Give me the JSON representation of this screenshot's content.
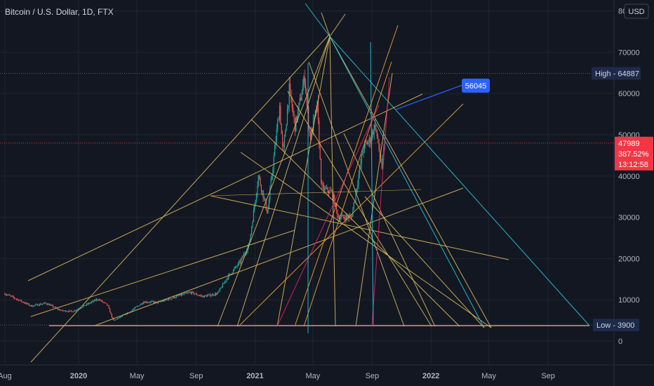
{
  "header": {
    "symbol": "Bitcoin / U.S. Dollar, 1D, FTX",
    "currency": "USD"
  },
  "chart_data": {
    "type": "candlestick",
    "title": "Bitcoin / U.S. Dollar, 1D, FTX",
    "ylim": [
      -4000,
      80000
    ],
    "y_ticks": [
      0,
      10000,
      20000,
      30000,
      40000,
      50000,
      60000,
      70000,
      80000
    ],
    "x_ticks": [
      "Aug",
      "2020",
      "May",
      "Sep",
      "2021",
      "May",
      "Sep",
      "2022",
      "May",
      "Sep"
    ],
    "price_path": [
      [
        "2019-08-01",
        11500
      ],
      [
        "2019-08-25",
        10200
      ],
      [
        "2019-09-25",
        8500
      ],
      [
        "2019-10-25",
        9200
      ],
      [
        "2019-11-25",
        7400
      ],
      [
        "2019-12-20",
        7200
      ],
      [
        "2020-02-10",
        10200
      ],
      [
        "2020-03-01",
        8700
      ],
      [
        "2020-03-13",
        4900
      ],
      [
        "2020-04-15",
        7000
      ],
      [
        "2020-05-15",
        9500
      ],
      [
        "2020-06-15",
        9400
      ],
      [
        "2020-07-27",
        11000
      ],
      [
        "2020-08-20",
        11800
      ],
      [
        "2020-09-15",
        10800
      ],
      [
        "2020-10-15",
        11500
      ],
      [
        "2020-11-05",
        15500
      ],
      [
        "2020-11-30",
        19000
      ],
      [
        "2020-12-20",
        23500
      ],
      [
        "2021-01-08",
        40000
      ],
      [
        "2021-01-27",
        31000
      ],
      [
        "2021-02-21",
        57000
      ],
      [
        "2021-02-28",
        45000
      ],
      [
        "2021-03-13",
        61000
      ],
      [
        "2021-03-25",
        52000
      ],
      [
        "2021-04-14",
        64000
      ],
      [
        "2021-04-25",
        49000
      ],
      [
        "2021-05-10",
        57000
      ],
      [
        "2021-05-19",
        37000
      ],
      [
        "2021-06-10",
        36000
      ],
      [
        "2021-06-22",
        30000
      ],
      [
        "2021-07-20",
        30000
      ],
      [
        "2021-08-14",
        47000
      ],
      [
        "2021-08-28",
        48800
      ],
      [
        "2021-09-07",
        52500
      ],
      [
        "2021-09-21",
        42000
      ],
      [
        "2021-09-27",
        47989
      ]
    ],
    "last_price": {
      "value": 47989,
      "value_label": "47989",
      "change_label": "387.52%",
      "countdown_label": "13:12:58",
      "color": "#f23645"
    },
    "high_marker": {
      "label": "High",
      "value": 64887,
      "value_label": "64887"
    },
    "low_marker": {
      "label": "Low",
      "value": 3900,
      "value_label": "3900"
    },
    "callout": {
      "label": "56045",
      "value": 56045,
      "color": "#2962ff"
    },
    "colors": {
      "up": "#26a69a",
      "down": "#ef5350",
      "background": "#131722",
      "grid": "#1f2431",
      "drawing_yellow": "#d7b85a",
      "drawing_orange": "#f0a030",
      "drawing_cyan": "#26c6da",
      "drawing_magenta": "#e91e63",
      "drawing_blue": "#2962ff"
    },
    "grid": true
  }
}
